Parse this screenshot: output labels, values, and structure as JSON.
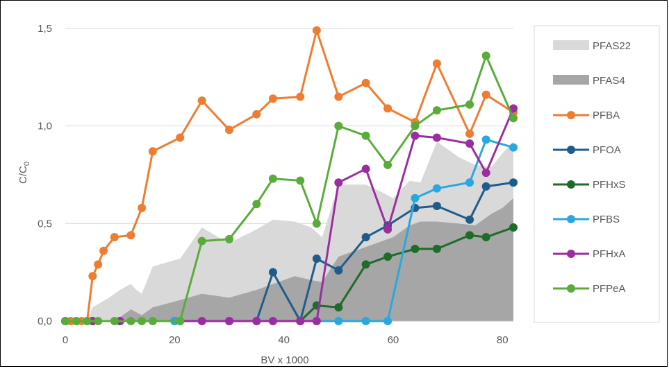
{
  "chart_data": {
    "type": "line",
    "title": "",
    "xlabel": "BV x 1000",
    "ylabel_main": "C/C",
    "ylabel_sub": "0",
    "xlim": [
      0,
      82
    ],
    "ylim": [
      0,
      1.5
    ],
    "x_ticks": [
      0,
      20,
      40,
      60,
      80
    ],
    "x_tick_labels": [
      "0",
      "20",
      "40",
      "60",
      "80"
    ],
    "y_ticks": [
      0,
      0.5,
      1.0,
      1.5
    ],
    "y_tick_labels": [
      "0,0",
      "0,5",
      "1,0",
      "1,5"
    ],
    "grid": "horizontal",
    "legend_position": "right",
    "areas": [
      {
        "name": "PFAS22",
        "color": "#d9d9d9",
        "x": [
          0,
          4,
          5,
          8,
          10,
          12,
          13,
          14,
          16,
          21,
          25,
          28,
          30,
          35,
          38,
          42,
          45,
          47,
          50,
          55,
          58,
          60,
          63,
          65,
          68,
          72,
          75,
          78,
          80,
          82
        ],
        "values": [
          0,
          0,
          0.07,
          0.12,
          0.16,
          0.19,
          0.16,
          0.14,
          0.28,
          0.32,
          0.48,
          0.43,
          0.4,
          0.47,
          0.52,
          0.51,
          0.48,
          0.43,
          0.7,
          0.7,
          0.66,
          0.63,
          0.72,
          0.71,
          0.92,
          0.84,
          0.8,
          0.79,
          0.86,
          0.92
        ]
      },
      {
        "name": "PFAS4",
        "color": "#a6a6a6",
        "x": [
          0,
          8,
          10,
          12,
          14,
          16,
          20,
          25,
          30,
          35,
          38,
          42,
          45,
          47,
          50,
          55,
          60,
          63,
          65,
          68,
          72,
          75,
          78,
          80,
          82
        ],
        "values": [
          0,
          0,
          0.02,
          0.06,
          0.03,
          0.07,
          0.1,
          0.14,
          0.12,
          0.16,
          0.19,
          0.23,
          0.21,
          0.2,
          0.33,
          0.38,
          0.43,
          0.49,
          0.51,
          0.51,
          0.5,
          0.49,
          0.55,
          0.58,
          0.63
        ]
      }
    ],
    "series": [
      {
        "name": "PFBA",
        "color": "#ed7d31",
        "x": [
          0,
          1,
          2,
          3,
          4,
          5,
          6,
          7,
          9,
          12,
          14,
          16,
          21,
          25,
          30,
          35,
          38,
          43,
          46,
          50,
          55,
          59,
          64,
          68,
          74,
          77,
          82
        ],
        "values": [
          0,
          0,
          0,
          0,
          0,
          0.23,
          0.29,
          0.36,
          0.43,
          0.44,
          0.58,
          0.87,
          0.94,
          1.13,
          0.98,
          1.06,
          1.14,
          1.15,
          1.49,
          1.15,
          1.22,
          1.09,
          1.02,
          1.32,
          0.96,
          1.16,
          1.07
        ]
      },
      {
        "name": "PFOA",
        "color": "#1f5c8b",
        "x": [
          0,
          5,
          10,
          20,
          35,
          38,
          43,
          46,
          50,
          55,
          59,
          64,
          68,
          74,
          77,
          82
        ],
        "values": [
          0,
          0,
          0,
          0,
          0,
          0.25,
          0,
          0.32,
          0.26,
          0.43,
          0.49,
          0.58,
          0.59,
          0.52,
          0.69,
          0.71
        ]
      },
      {
        "name": "PFHxS",
        "color": "#1e6b2a",
        "x": [
          0,
          5,
          10,
          20,
          30,
          43,
          46,
          50,
          55,
          59,
          64,
          68,
          74,
          77,
          82
        ],
        "values": [
          0,
          0,
          0,
          0,
          0,
          0,
          0.08,
          0.07,
          0.29,
          0.33,
          0.37,
          0.37,
          0.44,
          0.43,
          0.48
        ]
      },
      {
        "name": "PFBS",
        "color": "#29a8e0",
        "x": [
          0,
          5,
          10,
          20,
          30,
          46,
          50,
          55,
          59,
          64,
          68,
          74,
          77,
          82
        ],
        "values": [
          0,
          0,
          0,
          0,
          0,
          0,
          0,
          0,
          0,
          0.63,
          0.68,
          0.71,
          0.93,
          0.89
        ]
      },
      {
        "name": "PFHxA",
        "color": "#9a2ea0",
        "x": [
          0,
          5,
          10,
          21,
          25,
          30,
          35,
          38,
          43,
          46,
          50,
          55,
          59,
          64,
          68,
          74,
          77,
          82
        ],
        "values": [
          0,
          0,
          0,
          0,
          0,
          0,
          0,
          0,
          0,
          0,
          0.71,
          0.78,
          0.47,
          0.95,
          0.94,
          0.91,
          0.76,
          1.09
        ]
      },
      {
        "name": "PFPeA",
        "color": "#5aac3a",
        "x": [
          0,
          2,
          4,
          6,
          9,
          12,
          14,
          16,
          21,
          25,
          30,
          35,
          38,
          43,
          46,
          50,
          55,
          59,
          64,
          68,
          74,
          77,
          82
        ],
        "values": [
          0,
          0,
          0,
          0,
          0,
          0,
          0,
          0,
          0,
          0.41,
          0.42,
          0.6,
          0.73,
          0.72,
          0.5,
          1.0,
          0.95,
          0.8,
          1.0,
          1.08,
          1.11,
          1.36,
          1.04
        ]
      }
    ],
    "legend": [
      "PFAS22",
      "PFAS4",
      "PFBA",
      "PFOA",
      "PFHxS",
      "PFBS",
      "PFHxA",
      "PFPeA"
    ]
  }
}
